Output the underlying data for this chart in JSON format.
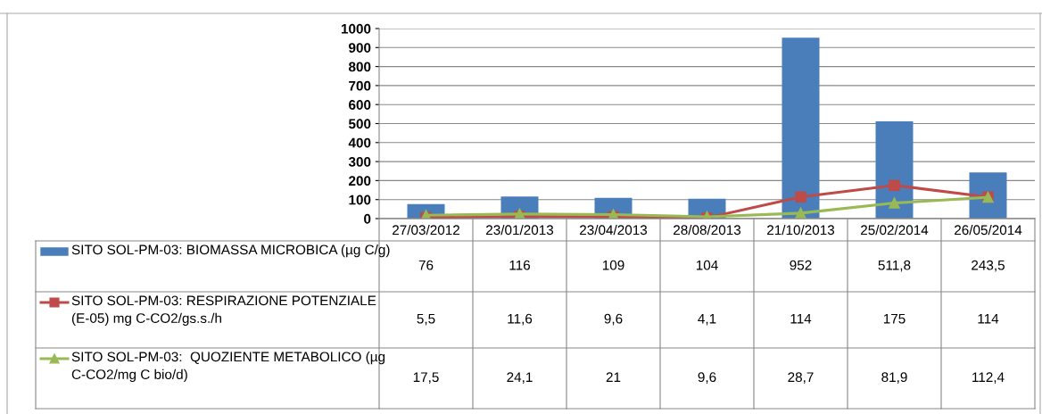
{
  "chart_data": {
    "type": "bar",
    "categories": [
      "27/03/2012",
      "23/01/2013",
      "23/04/2013",
      "28/08/2013",
      "21/10/2013",
      "25/02/2014",
      "26/05/2014"
    ],
    "series": [
      {
        "name": "SITO SOL-PM-03: BIOMASSA MICROBICA (µg C/g)",
        "color": "#4a7ebb",
        "values": [
          76,
          116,
          109,
          104,
          952,
          511.8,
          243.5
        ],
        "value_labels": [
          "76",
          "116",
          "109",
          "104",
          "952",
          "511,8",
          "243,5"
        ]
      },
      {
        "name": "SITO SOL-PM-03: RESPIRAZIONE POTENZIALE (E-05) mg C-CO2/gs.s./h",
        "type": "line",
        "marker": "square",
        "color": "#be4b48",
        "values": [
          5.5,
          11.6,
          9.6,
          4.1,
          114,
          175,
          114
        ],
        "value_labels": [
          "5,5",
          "11,6",
          "9,6",
          "4,1",
          "114",
          "175",
          "114"
        ]
      },
      {
        "name": "SITO SOL-PM-03:  QUOZIENTE METABOLICO (µg C-CO2/mg C bio/d)",
        "type": "line",
        "marker": "triangle",
        "color": "#98b954",
        "values": [
          17.5,
          24.1,
          21,
          9.6,
          28.7,
          81.9,
          112.4
        ],
        "value_labels": [
          "17,5",
          "24,1",
          "21",
          "9,6",
          "28,7",
          "81,9",
          "112,4"
        ]
      }
    ],
    "ylim": [
      0,
      1000
    ],
    "yticks": [
      0,
      100,
      200,
      300,
      400,
      500,
      600,
      700,
      800,
      900,
      1000
    ],
    "grid": "y",
    "legend": "left"
  }
}
